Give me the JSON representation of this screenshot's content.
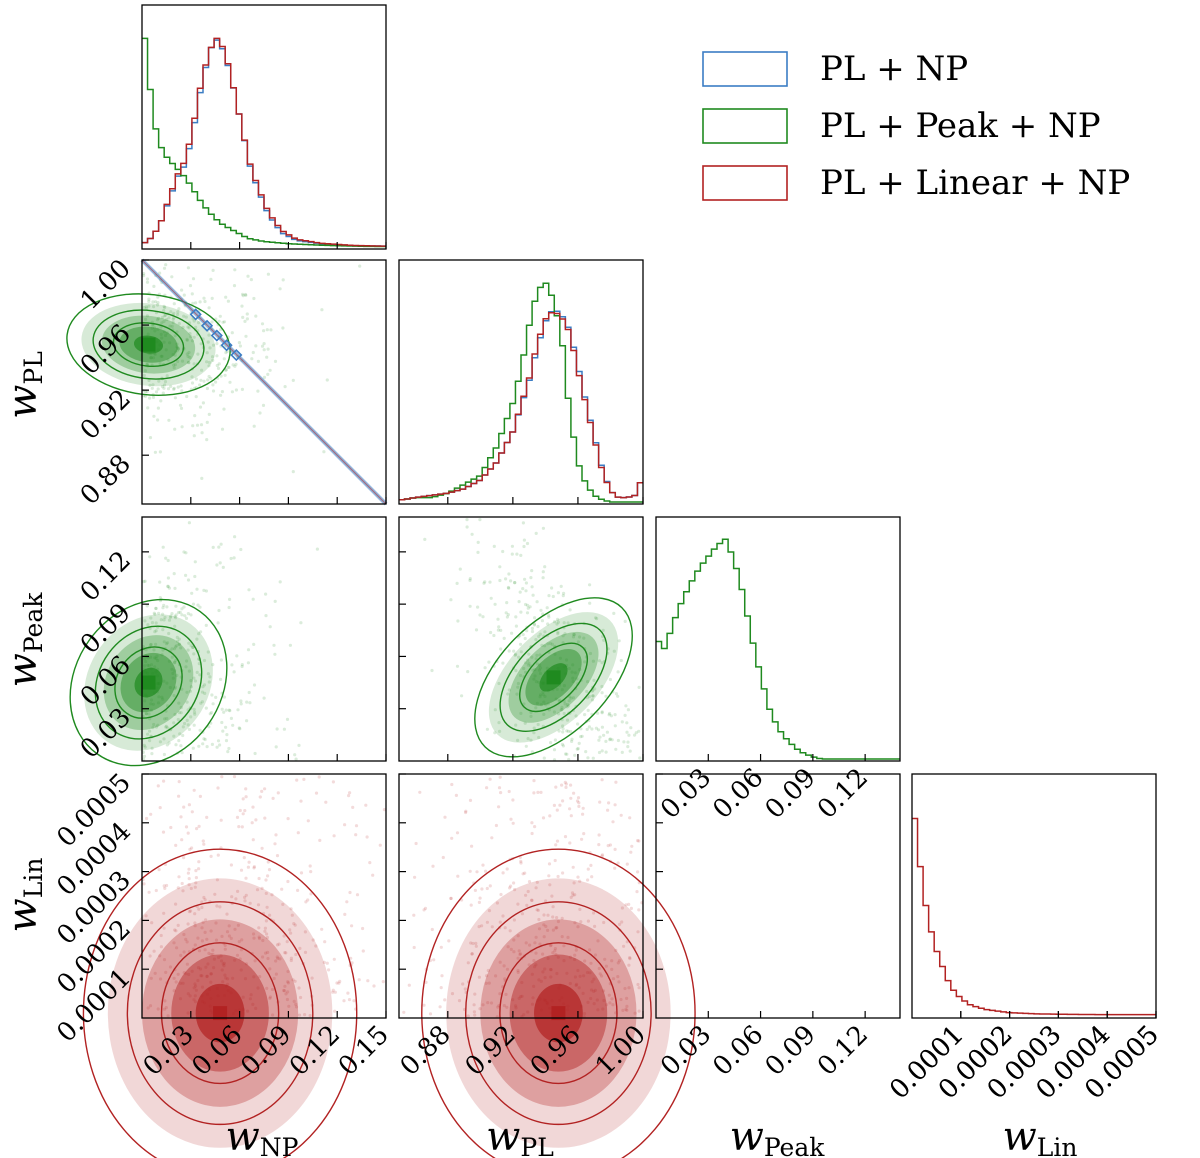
{
  "colors": {
    "PL + NP": "#3b7dc4",
    "PL + Peak + NP": "#1f8a1f",
    "PL + Linear + NP": "#b22222"
  },
  "chart_data": {
    "type": "corner",
    "grid": false,
    "legend_placement": "top-right",
    "series": [
      {
        "name": "PL + NP",
        "color": "#3b7dc4"
      },
      {
        "name": "PL + Peak + NP",
        "color": "#1f8a1f"
      },
      {
        "name": "PL + Linear + NP",
        "color": "#b22222"
      }
    ],
    "params": [
      {
        "key": "wNP",
        "symbol": "w",
        "subscript": "NP",
        "range": [
          0.0,
          0.15
        ],
        "ticks": [
          0.03,
          0.06,
          0.09,
          0.12,
          0.15
        ],
        "tick_labels": [
          "0.03",
          "0.06",
          "0.09",
          "0.12",
          "0.15"
        ]
      },
      {
        "key": "wPL",
        "symbol": "w",
        "subscript": "PL",
        "range": [
          0.85,
          1.0
        ],
        "ticks": [
          0.88,
          0.92,
          0.96,
          1.0
        ],
        "tick_labels": [
          "0.88",
          "0.92",
          "0.96",
          "1.00"
        ]
      },
      {
        "key": "wPeak",
        "symbol": "w",
        "subscript": "Peak",
        "range": [
          0.0,
          0.14
        ],
        "ticks": [
          0.03,
          0.06,
          0.09,
          0.12
        ],
        "tick_labels": [
          "0.03",
          "0.06",
          "0.09",
          "0.12"
        ]
      },
      {
        "key": "wLin",
        "symbol": "w",
        "subscript": "Lin",
        "range": [
          0.0,
          0.0005
        ],
        "ticks": [
          0.0001,
          0.0002,
          0.0003,
          0.0004,
          0.0005
        ],
        "tick_labels": [
          "0.0001",
          "0.0002",
          "0.0003",
          "0.0004",
          "0.0005"
        ]
      }
    ],
    "marginals": [
      {
        "param": "wNP",
        "series": "PL + NP",
        "x": [
          0.002,
          0.007,
          0.012,
          0.017,
          0.022,
          0.027,
          0.032,
          0.037,
          0.042,
          0.047,
          0.052,
          0.057,
          0.062,
          0.067,
          0.072,
          0.077,
          0.082,
          0.087,
          0.095,
          0.11,
          0.13,
          0.148
        ],
        "density": [
          0.02,
          0.05,
          0.12,
          0.22,
          0.32,
          0.38,
          0.55,
          0.75,
          0.9,
          0.95,
          0.85,
          0.7,
          0.52,
          0.35,
          0.25,
          0.16,
          0.1,
          0.06,
          0.03,
          0.015,
          0.006,
          0.004
        ]
      },
      {
        "param": "wNP",
        "series": "PL + Peak + NP",
        "x": [
          0.001,
          0.004,
          0.008,
          0.012,
          0.016,
          0.02,
          0.025,
          0.03,
          0.035,
          0.04,
          0.045,
          0.05,
          0.055,
          0.06,
          0.065,
          0.075,
          0.09,
          0.11,
          0.13,
          0.148
        ],
        "density": [
          1.0,
          0.78,
          0.55,
          0.45,
          0.4,
          0.37,
          0.33,
          0.28,
          0.22,
          0.17,
          0.13,
          0.1,
          0.08,
          0.06,
          0.04,
          0.025,
          0.015,
          0.008,
          0.004,
          0.002
        ]
      },
      {
        "param": "wNP",
        "series": "PL + Linear + NP",
        "x": [
          0.002,
          0.007,
          0.012,
          0.017,
          0.022,
          0.027,
          0.032,
          0.037,
          0.042,
          0.047,
          0.052,
          0.057,
          0.062,
          0.067,
          0.072,
          0.077,
          0.082,
          0.087,
          0.095,
          0.11,
          0.13,
          0.148
        ],
        "density": [
          0.02,
          0.05,
          0.12,
          0.23,
          0.33,
          0.4,
          0.57,
          0.77,
          0.9,
          0.96,
          0.86,
          0.7,
          0.52,
          0.36,
          0.26,
          0.17,
          0.11,
          0.07,
          0.035,
          0.017,
          0.007,
          0.004
        ]
      },
      {
        "param": "wPL",
        "series": "PL + NP",
        "x": [
          0.852,
          0.86,
          0.87,
          0.88,
          0.89,
          0.9,
          0.91,
          0.92,
          0.93,
          0.935,
          0.94,
          0.945,
          0.95,
          0.955,
          0.96,
          0.965,
          0.97,
          0.975,
          0.98,
          0.985,
          0.99,
          0.995,
          0.999
        ],
        "density": [
          0.01,
          0.02,
          0.03,
          0.04,
          0.06,
          0.1,
          0.18,
          0.32,
          0.55,
          0.7,
          0.82,
          0.88,
          0.85,
          0.78,
          0.62,
          0.45,
          0.3,
          0.15,
          0.05,
          0.02,
          0.02,
          0.03,
          0.1
        ]
      },
      {
        "param": "wPL",
        "series": "PL + Peak + NP",
        "x": [
          0.852,
          0.86,
          0.87,
          0.88,
          0.89,
          0.9,
          0.91,
          0.92,
          0.925,
          0.93,
          0.935,
          0.94,
          0.945,
          0.95,
          0.955,
          0.96,
          0.965,
          0.97,
          0.975,
          0.98,
          0.99
        ],
        "density": [
          0.01,
          0.02,
          0.02,
          0.04,
          0.08,
          0.12,
          0.25,
          0.45,
          0.6,
          0.8,
          0.96,
          1.0,
          0.92,
          0.75,
          0.4,
          0.18,
          0.08,
          0.03,
          0.01,
          0.0,
          0.0
        ]
      },
      {
        "param": "wPL",
        "series": "PL + Linear + NP",
        "x": [
          0.852,
          0.86,
          0.87,
          0.88,
          0.89,
          0.9,
          0.91,
          0.92,
          0.93,
          0.935,
          0.94,
          0.945,
          0.95,
          0.955,
          0.96,
          0.965,
          0.97,
          0.975,
          0.98,
          0.985,
          0.99,
          0.995,
          0.999
        ],
        "density": [
          0.01,
          0.02,
          0.03,
          0.04,
          0.06,
          0.1,
          0.18,
          0.32,
          0.56,
          0.72,
          0.83,
          0.87,
          0.84,
          0.77,
          0.6,
          0.44,
          0.29,
          0.14,
          0.05,
          0.02,
          0.02,
          0.03,
          0.1
        ]
      },
      {
        "param": "wPeak",
        "series": "PL + Peak + NP",
        "x": [
          0.0,
          0.005,
          0.01,
          0.015,
          0.02,
          0.025,
          0.03,
          0.035,
          0.04,
          0.045,
          0.05,
          0.055,
          0.06,
          0.065,
          0.07,
          0.075,
          0.08,
          0.085,
          0.09,
          0.095
        ],
        "density": [
          0.55,
          0.5,
          0.62,
          0.72,
          0.8,
          0.87,
          0.92,
          0.97,
          1.0,
          0.9,
          0.75,
          0.55,
          0.38,
          0.23,
          0.14,
          0.09,
          0.05,
          0.025,
          0.01,
          0.0
        ]
      },
      {
        "param": "wLin",
        "series": "PL + Linear + NP",
        "x": [
          0.0,
          1e-05,
          2e-05,
          3e-05,
          4e-05,
          5e-05,
          6e-05,
          7e-05,
          8e-05,
          0.0001,
          0.00012,
          0.00015,
          0.0002,
          0.00025,
          0.0003,
          0.0004,
          0.0005
        ],
        "density": [
          1.0,
          0.82,
          0.62,
          0.48,
          0.38,
          0.3,
          0.24,
          0.18,
          0.13,
          0.08,
          0.05,
          0.03,
          0.015,
          0.01,
          0.008,
          0.006,
          0.006
        ]
      }
    ],
    "joint_peaks": [
      {
        "x": "wNP",
        "y": "wPL",
        "series": "PL + Peak + NP",
        "peak": [
          0.003,
          0.947
        ]
      },
      {
        "x": "wNP",
        "y": "wPL",
        "series": "PL + NP",
        "peak": [
          0.045,
          0.955
        ]
      },
      {
        "x": "wNP",
        "y": "wPeak",
        "series": "PL + Peak + NP",
        "peak": [
          0.003,
          0.047
        ]
      },
      {
        "x": "wPL",
        "y": "wPeak",
        "series": "PL + Peak + NP",
        "peak": [
          0.945,
          0.047
        ]
      },
      {
        "x": "wNP",
        "y": "wLin",
        "series": "PL + Linear + NP",
        "peak": [
          0.048,
          2e-05
        ]
      },
      {
        "x": "wPL",
        "y": "wLin",
        "series": "PL + Linear + NP",
        "peak": [
          0.948,
          2e-05
        ]
      }
    ]
  }
}
